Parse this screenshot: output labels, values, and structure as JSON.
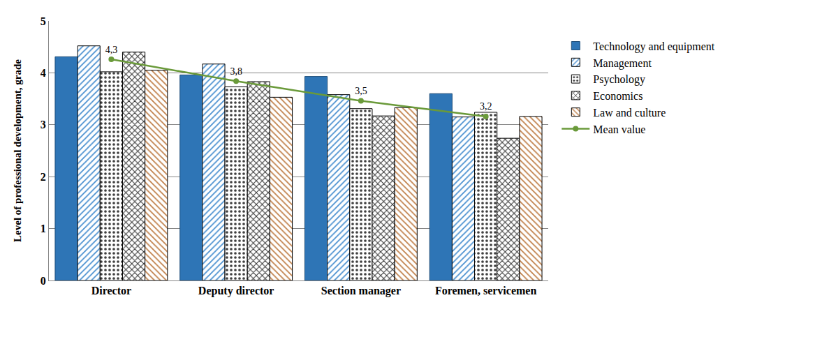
{
  "chart_data": {
    "type": "bar",
    "y_label": "Level of professional development, grade",
    "categories": [
      "Director",
      "Deputy director",
      "Section manager",
      "Foremen, servicemen"
    ],
    "series": [
      {
        "name": "Technology and equipment",
        "color": "#2e75b6",
        "values": [
          4.31,
          3.96,
          3.93,
          3.6
        ]
      },
      {
        "name": "Management",
        "color": "#4a90d0",
        "values": [
          4.52,
          4.17,
          3.58,
          3.15
        ]
      },
      {
        "name": "Psychology",
        "color": "#404040",
        "values": [
          4.02,
          3.73,
          3.31,
          3.24
        ]
      },
      {
        "name": "Economics",
        "color": "#303030",
        "values": [
          4.4,
          3.83,
          3.17,
          2.74
        ]
      },
      {
        "name": "Law and culture",
        "color": "#c0804a",
        "values": [
          4.05,
          3.53,
          3.33,
          3.16
        ]
      },
      {
        "name": "Mean value",
        "type": "line",
        "color": "#6a9a3a",
        "marker": "circle",
        "line_style": "solid",
        "values": [
          4.26,
          3.84,
          3.46,
          3.16
        ],
        "value_labels": [
          "4,3",
          "3,8",
          "3,5",
          "3,2"
        ]
      }
    ],
    "ylim": [
      0,
      5
    ],
    "yticks": [
      0,
      1,
      2,
      3,
      4,
      5
    ],
    "grid": true,
    "legend": "right"
  }
}
